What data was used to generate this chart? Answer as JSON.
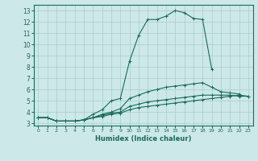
{
  "xlabel": "Humidex (Indice chaleur)",
  "bg_color": "#cce8e8",
  "grid_color": "#aacccc",
  "line_color": "#1a6b5a",
  "xlim": [
    -0.5,
    23.5
  ],
  "ylim": [
    2.8,
    13.5
  ],
  "xticks": [
    0,
    1,
    2,
    3,
    4,
    5,
    6,
    7,
    8,
    9,
    10,
    11,
    12,
    13,
    14,
    15,
    16,
    17,
    18,
    19,
    20,
    21,
    22,
    23
  ],
  "yticks": [
    3,
    4,
    5,
    6,
    7,
    8,
    9,
    10,
    11,
    12,
    13
  ],
  "series": [
    [
      3.5,
      3.5,
      3.2,
      3.2,
      3.2,
      3.3,
      3.8,
      4.2,
      5.0,
      5.2,
      8.5,
      10.8,
      12.2,
      12.2,
      12.5,
      13.0,
      12.8,
      12.3,
      12.2,
      7.8,
      null,
      null,
      null,
      null
    ],
    [
      3.5,
      3.5,
      3.2,
      3.2,
      3.2,
      3.3,
      3.5,
      3.8,
      4.0,
      4.3,
      5.2,
      5.5,
      5.8,
      6.0,
      6.2,
      6.3,
      6.4,
      6.5,
      6.6,
      6.2,
      5.8,
      5.7,
      5.6,
      null
    ],
    [
      3.5,
      3.5,
      3.2,
      3.2,
      3.2,
      3.3,
      3.5,
      3.7,
      3.9,
      4.0,
      4.5,
      4.7,
      4.9,
      5.0,
      5.1,
      5.2,
      5.3,
      5.4,
      5.5,
      5.5,
      5.5,
      5.5,
      5.4,
      5.4
    ],
    [
      3.5,
      3.5,
      3.2,
      3.2,
      3.2,
      3.3,
      3.5,
      3.6,
      3.8,
      3.9,
      4.2,
      4.4,
      4.5,
      4.6,
      4.7,
      4.8,
      4.9,
      5.0,
      5.1,
      5.2,
      5.3,
      5.4,
      5.5,
      5.4
    ]
  ]
}
